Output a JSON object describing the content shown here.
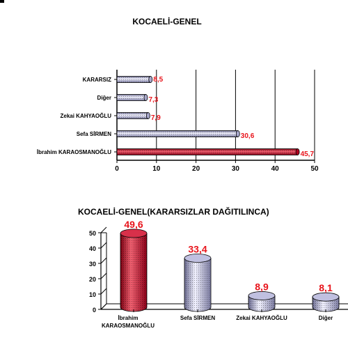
{
  "chart_data": [
    {
      "type": "bar",
      "orientation": "horizontal",
      "title": "KOCAELİ-GENEL",
      "categories": [
        "KARARSIZ",
        "Diğer",
        "Zekai KAHYAOĞLU",
        "Sefa SİRMEN",
        "İbrahim KARAOSMANOĞLU"
      ],
      "values": [
        8.5,
        7.3,
        7.9,
        30.6,
        45.7
      ],
      "value_labels": [
        "8,5",
        "7,3",
        "7,9",
        "30,6",
        "45,7"
      ],
      "colors": [
        "#c8c8e6",
        "#c8c8e6",
        "#c8c8e6",
        "#c8c8e6",
        "#c8102e"
      ],
      "xlim": [
        0,
        50
      ],
      "xticks": [
        "0",
        "10",
        "20",
        "30",
        "40",
        "50"
      ],
      "grid": true
    },
    {
      "type": "bar",
      "style": "3d-cylinder",
      "title": "KOCAELİ-GENEL(KARARSIZLAR DAĞITILINCA)",
      "categories": [
        "İbrahim KARAOSMANOĞLU",
        "Sefa SİRMEN",
        "Zekai KAHYAOĞLU",
        "Diğer"
      ],
      "category_lines": [
        [
          "İbrahim",
          "KARAOSMANOĞLU"
        ],
        [
          "Sefa SİRMEN"
        ],
        [
          "Zekai KAHYAOĞLU"
        ],
        [
          "Diğer"
        ]
      ],
      "values": [
        49.6,
        33.4,
        8.9,
        8.1
      ],
      "value_labels": [
        "49,6",
        "33,4",
        "8,9",
        "8,1"
      ],
      "colors": [
        "#c8102e",
        "#c8c8e6",
        "#c8c8e6",
        "#c8c8e6"
      ],
      "ylim": [
        0,
        50
      ],
      "yticks": [
        "0",
        "10",
        "20",
        "30",
        "40",
        "50"
      ]
    }
  ]
}
